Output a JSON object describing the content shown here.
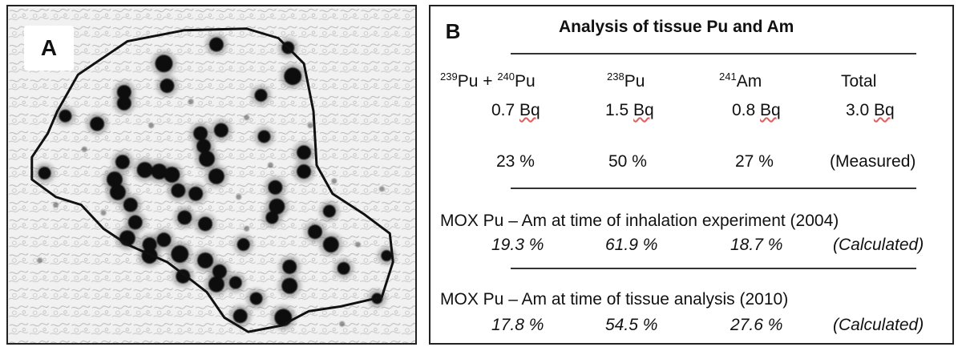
{
  "panelA": {
    "letter": "A"
  },
  "panelB": {
    "letter": "B",
    "title": "Analysis of tissue Pu and Am",
    "headers": {
      "col1_sup1": "239",
      "col1_a": "Pu + ",
      "col1_sup2": "240",
      "col1_b": "Pu",
      "col2_sup": "238",
      "col2": "Pu",
      "col3_sup": "241",
      "col3": "Am",
      "col4": "Total"
    },
    "activity": {
      "col1_num": "0.7 ",
      "col1_unit": "Bq",
      "col2_num": "1.5 ",
      "col2_unit": "Bq",
      "col3_num": "0.8 ",
      "col3_unit": "Bq",
      "col4_num": "3.0 ",
      "col4_unit": "Bq"
    },
    "measured": {
      "col1": "23 %",
      "col2": "50 %",
      "col3": "27 %",
      "label": "(Measured)"
    },
    "mox2004": {
      "label": "MOX  Pu – Am at time of inhalation experiment (2004)",
      "col1": "19.3 %",
      "col2": "61.9 %",
      "col3": "18.7 %",
      "note": "(Calculated)"
    },
    "mox2010": {
      "label": "MOX  Pu – Am at time of tissue analysis (2010)",
      "col1": "17.8 %",
      "col2": "54.5 %",
      "col3": "27.6 %",
      "note": "(Calculated)"
    }
  }
}
